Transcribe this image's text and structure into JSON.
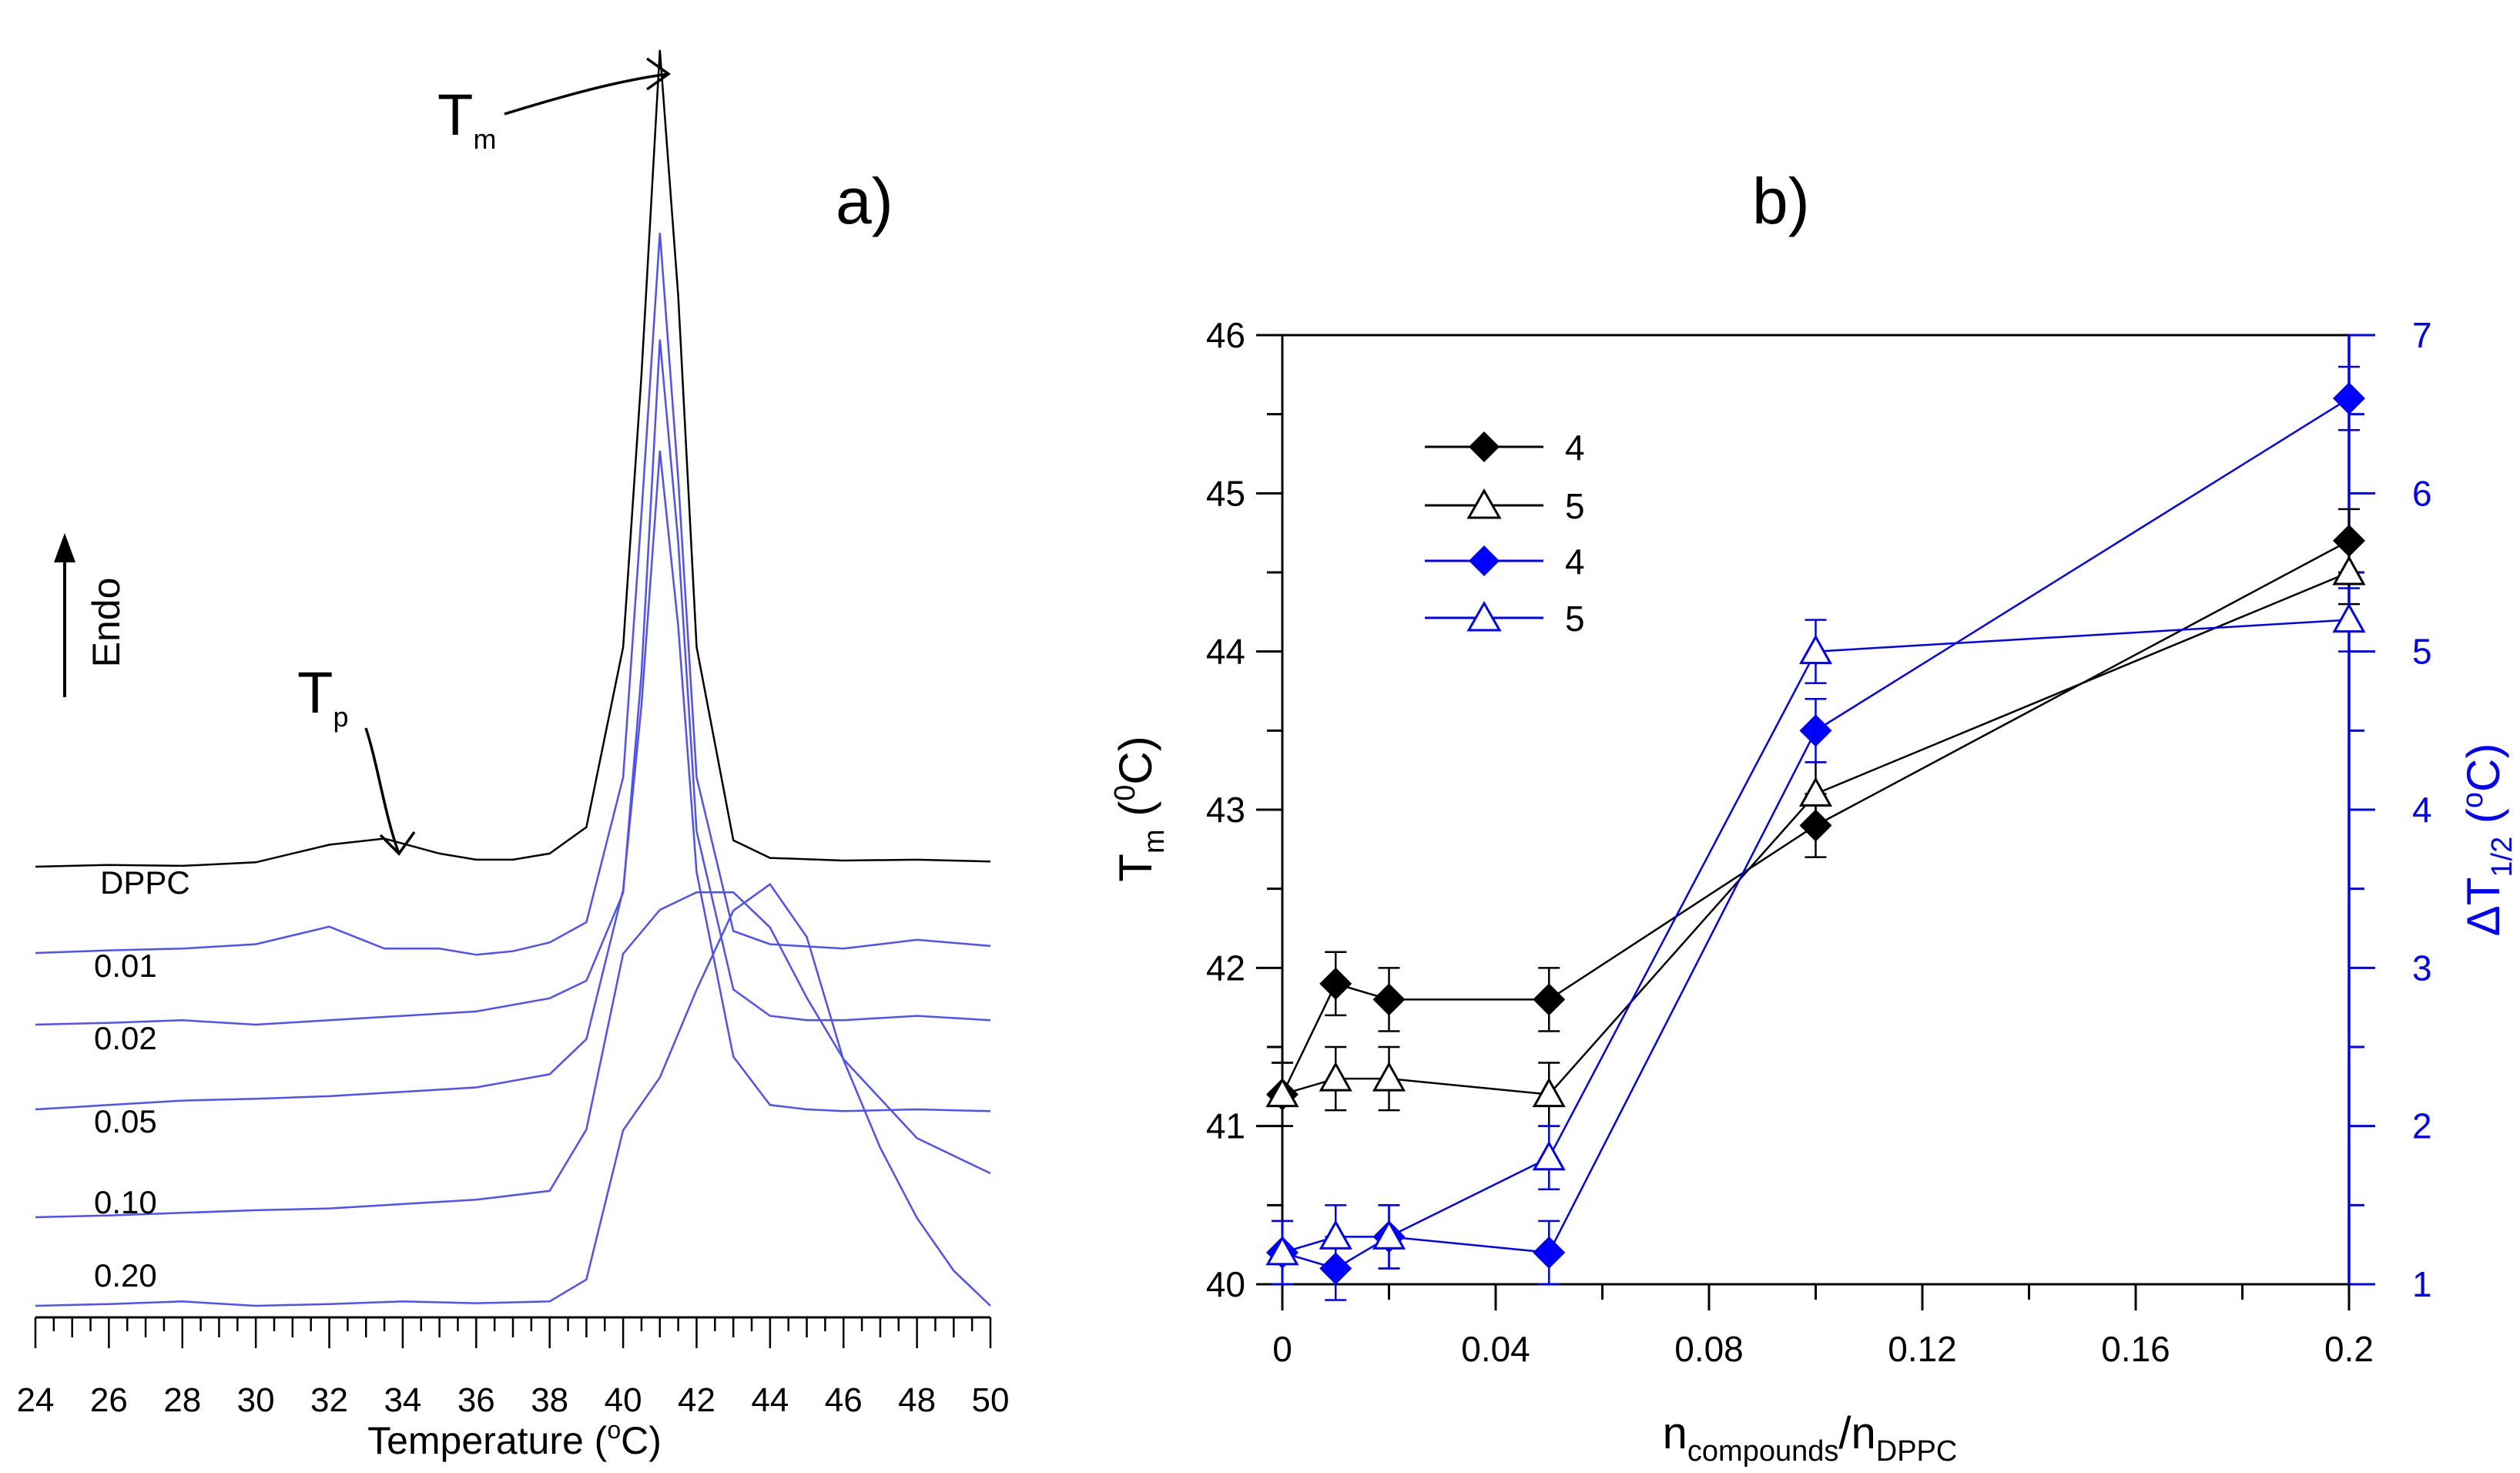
{
  "panel_a": {
    "label": "a)",
    "tm_label": "T",
    "tm_sub": "m",
    "tp_label": "T",
    "tp_sub": "p",
    "endo_label": "Endo",
    "xlabel_prefix": "Temperature (",
    "xlabel_sup": "o",
    "xlabel_suffix": "C)"
  },
  "panel_b": {
    "label": "b)",
    "ylabel_left": "T",
    "ylabel_left_sub": "m",
    "ylabel_left_unit": " (",
    "ylabel_left_sup": "0",
    "ylabel_left_close": "C)",
    "ylabel_right": "ΔT",
    "ylabel_right_sub": "1/2",
    "ylabel_right_unit": " (",
    "ylabel_right_sup": "o",
    "ylabel_right_close": "C)",
    "xlabel": "n",
    "xlabel_sub1": "compounds",
    "xlabel_mid": "/n",
    "xlabel_sub2": "DPPC"
  },
  "colors": {
    "black": "#000000",
    "blue": "#0000ff",
    "lightblue": "#4f4fff"
  },
  "chart_data": [
    {
      "type": "line",
      "title": "a)",
      "xlabel": "Temperature (oC)",
      "ylabel": "Endo",
      "xlim": [
        24,
        50
      ],
      "xticks": [
        "24",
        "26",
        "28",
        "30",
        "32",
        "34",
        "36",
        "38",
        "40",
        "42",
        "44",
        "46",
        "48",
        "50"
      ],
      "series": [
        {
          "name": "DPPC",
          "color": "#000000",
          "x": [
            24,
            26,
            28,
            30,
            32,
            33.5,
            35,
            36,
            37,
            38,
            39,
            40,
            40.5,
            41,
            41.5,
            42,
            43,
            44,
            46,
            48,
            50
          ],
          "y": [
            0,
            0.02,
            0.01,
            0.05,
            0.25,
            0.32,
            0.15,
            0.08,
            0.08,
            0.15,
            0.45,
            2.5,
            5.6,
            9.3,
            6.5,
            2.5,
            0.3,
            0.1,
            0.07,
            0.08,
            0.06
          ]
        },
        {
          "name": "0.01",
          "color": "#4f4fff",
          "x": [
            24,
            26,
            28,
            30,
            32,
            33.5,
            35,
            36,
            37,
            38,
            39,
            40,
            40.5,
            41,
            41.5,
            42,
            43,
            44,
            46,
            48,
            50
          ],
          "y": [
            0,
            0.03,
            0.05,
            0.1,
            0.3,
            0.05,
            0.05,
            -0.02,
            0.02,
            0.12,
            0.35,
            2.0,
            5.0,
            8.2,
            5.4,
            2.0,
            0.25,
            0.1,
            0.05,
            0.15,
            0.08
          ]
        },
        {
          "name": "0.02",
          "color": "#4f4fff",
          "x": [
            24,
            26,
            28,
            30,
            32,
            34,
            36,
            38,
            39,
            40,
            40.5,
            41,
            41.5,
            42,
            43,
            44,
            45,
            46,
            48,
            50
          ],
          "y": [
            0,
            0.02,
            0.05,
            0.0,
            0.05,
            0.1,
            0.15,
            0.3,
            0.5,
            1.5,
            4.0,
            7.8,
            5.5,
            2.2,
            0.4,
            0.1,
            0.05,
            0.05,
            0.1,
            0.05
          ]
        },
        {
          "name": "0.05",
          "color": "#4f4fff",
          "x": [
            24,
            26,
            28,
            30,
            32,
            34,
            36,
            38,
            39,
            40,
            40.5,
            41,
            41.5,
            42,
            43,
            44,
            45,
            46,
            48,
            50
          ],
          "y": [
            0,
            0.05,
            0.1,
            0.12,
            0.15,
            0.2,
            0.25,
            0.4,
            0.8,
            2.5,
            4.6,
            7.5,
            5.5,
            2.7,
            0.6,
            0.05,
            0.0,
            -0.02,
            0.0,
            -0.02
          ]
        },
        {
          "name": "0.10",
          "color": "#4f4fff",
          "x": [
            24,
            26,
            28,
            30,
            32,
            34,
            36,
            38,
            39,
            40,
            41,
            42,
            43,
            44,
            45,
            46,
            48,
            50
          ],
          "y": [
            0,
            0.02,
            0.05,
            0.08,
            0.1,
            0.15,
            0.2,
            0.3,
            1.0,
            3.0,
            3.5,
            3.7,
            3.7,
            3.3,
            2.5,
            1.8,
            0.9,
            0.5
          ]
        },
        {
          "name": "0.20",
          "color": "#4f4fff",
          "x": [
            24,
            26,
            28,
            30,
            32,
            34,
            36,
            38,
            39,
            40,
            41,
            42,
            43,
            44,
            45,
            46,
            47,
            48,
            49,
            50
          ],
          "y": [
            0,
            0.02,
            0.05,
            0.0,
            0.02,
            0.05,
            0.03,
            0.05,
            0.3,
            2.0,
            2.6,
            3.6,
            4.5,
            4.8,
            4.2,
            2.8,
            1.8,
            1.0,
            0.4,
            0.0
          ]
        }
      ],
      "labels": [
        "DPPC",
        "0.01",
        "0.02",
        "0.05",
        "0.10",
        "0.20"
      ]
    },
    {
      "type": "scatter",
      "title": "b)",
      "xlabel": "ncompounds/nDPPC",
      "ylabel_left": "Tm (0C)",
      "ylabel_right": "ΔT1/2 (oC)",
      "xlim": [
        0,
        0.2
      ],
      "ylim_left": [
        40,
        46
      ],
      "ylim_right": [
        1,
        7
      ],
      "xticks": [
        "0",
        "0.04",
        "0.08",
        "0.12",
        "0.16",
        "0.2"
      ],
      "yticks_left": [
        "40",
        "41",
        "42",
        "43",
        "44",
        "45",
        "46"
      ],
      "yticks_right": [
        "1",
        "2",
        "3",
        "4",
        "5",
        "6",
        "7"
      ],
      "legend_position": "top-left",
      "series": [
        {
          "name": "4",
          "axis": "left",
          "marker": "filled-diamond",
          "color": "#000000",
          "x": [
            0,
            0.01,
            0.02,
            0.05,
            0.1,
            0.2
          ],
          "y": [
            41.2,
            41.9,
            41.8,
            41.8,
            42.9,
            44.7
          ],
          "err": [
            0.2,
            0.2,
            0.2,
            0.2,
            0.2,
            0.2
          ]
        },
        {
          "name": "5",
          "axis": "left",
          "marker": "open-triangle",
          "color": "#000000",
          "x": [
            0,
            0.01,
            0.02,
            0.05,
            0.1,
            0.2
          ],
          "y": [
            41.2,
            41.3,
            41.3,
            41.2,
            43.1,
            44.5
          ],
          "err": [
            0.2,
            0.2,
            0.2,
            0.2,
            0.2,
            0.2
          ]
        },
        {
          "name": "4",
          "axis": "right",
          "marker": "filled-diamond",
          "color": "#0000ff",
          "x": [
            0,
            0.01,
            0.02,
            0.05,
            0.1,
            0.2
          ],
          "y": [
            1.2,
            1.1,
            1.3,
            1.2,
            4.5,
            6.6
          ],
          "err": [
            0.2,
            0.2,
            0.2,
            0.2,
            0.2,
            0.2
          ]
        },
        {
          "name": "5",
          "axis": "right",
          "marker": "open-triangle",
          "color": "#0000ff",
          "x": [
            0,
            0.01,
            0.02,
            0.05,
            0.1,
            0.2
          ],
          "y": [
            1.2,
            1.3,
            1.3,
            1.8,
            5.0,
            5.2
          ],
          "err": [
            0.2,
            0.2,
            0.2,
            0.2,
            0.2,
            0.2
          ]
        }
      ]
    }
  ]
}
